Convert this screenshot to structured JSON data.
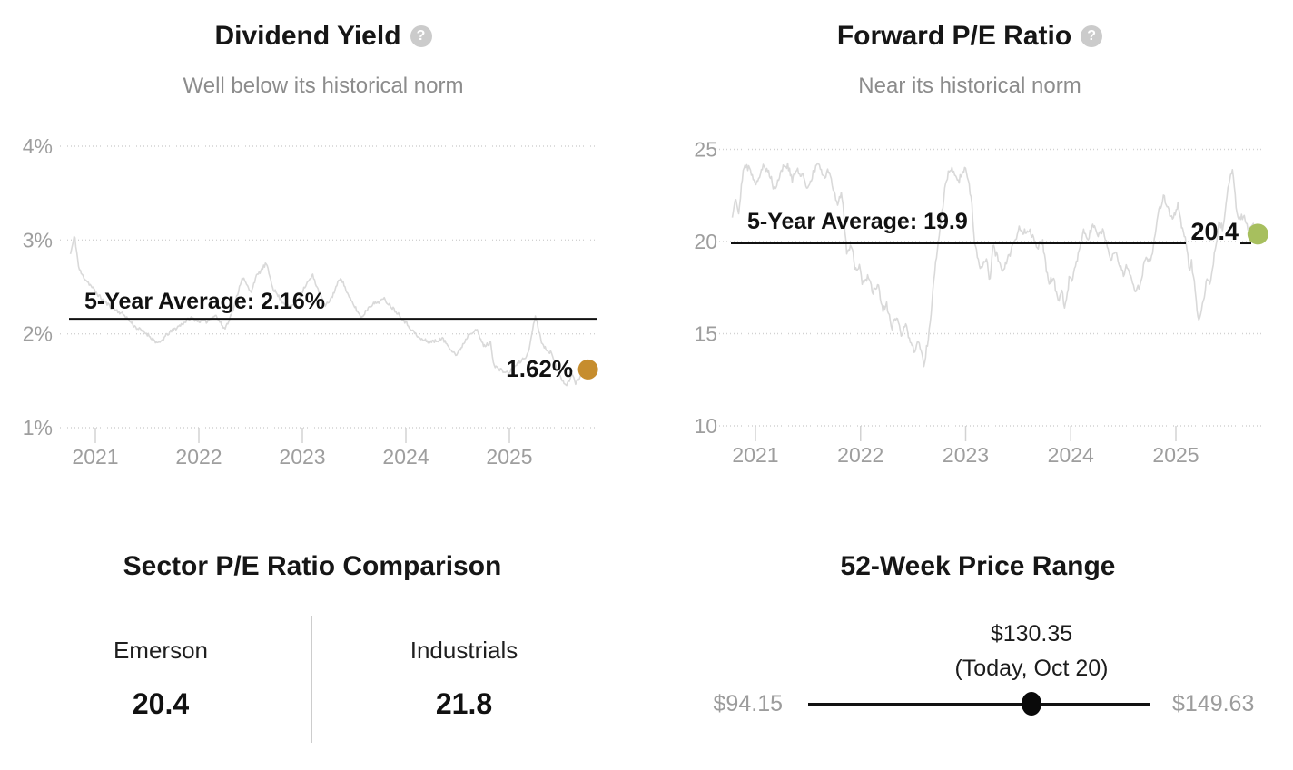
{
  "ui": {
    "help_glyph": "?"
  },
  "chart_data": [
    {
      "id": "dividend-yield",
      "type": "line",
      "title": "Dividend Yield",
      "subtitle": "Well below its historical norm",
      "x_ticks": [
        2021,
        2022,
        2023,
        2024,
        2025
      ],
      "y_ticks": [
        {
          "label": "4%",
          "value": 4
        },
        {
          "label": "3%",
          "value": 3
        },
        {
          "label": "2%",
          "value": 2
        },
        {
          "label": "1%",
          "value": 1
        }
      ],
      "x_range": [
        2020.76,
        2025.76
      ],
      "ylim": [
        1,
        4
      ],
      "grid": "dotted-horizontal",
      "legend_position": "none",
      "average": {
        "label": "5-Year Average: 2.16%",
        "value": 2.16
      },
      "current": {
        "label": "1.62%",
        "value": 1.62
      },
      "line_color": "#d9d9d9",
      "dot_color": "#c68d2e",
      "anchors": [
        [
          2020.76,
          2.85
        ],
        [
          2020.8,
          3.05
        ],
        [
          2020.84,
          2.7
        ],
        [
          2020.87,
          2.63
        ],
        [
          2020.93,
          2.55
        ],
        [
          2021.0,
          2.45
        ],
        [
          2021.08,
          2.35
        ],
        [
          2021.16,
          2.28
        ],
        [
          2021.28,
          2.2
        ],
        [
          2021.39,
          2.07
        ],
        [
          2021.5,
          2.0
        ],
        [
          2021.57,
          1.93
        ],
        [
          2021.61,
          1.89
        ],
        [
          2021.7,
          2.0
        ],
        [
          2021.83,
          2.1
        ],
        [
          2021.92,
          2.17
        ],
        [
          2022.0,
          2.14
        ],
        [
          2022.07,
          2.13
        ],
        [
          2022.16,
          2.2
        ],
        [
          2022.25,
          2.05
        ],
        [
          2022.33,
          2.25
        ],
        [
          2022.42,
          2.61
        ],
        [
          2022.5,
          2.44
        ],
        [
          2022.55,
          2.6
        ],
        [
          2022.65,
          2.75
        ],
        [
          2022.72,
          2.48
        ],
        [
          2022.8,
          2.35
        ],
        [
          2022.88,
          2.28
        ],
        [
          2022.95,
          2.35
        ],
        [
          2023.02,
          2.5
        ],
        [
          2023.1,
          2.62
        ],
        [
          2023.16,
          2.45
        ],
        [
          2023.22,
          2.29
        ],
        [
          2023.28,
          2.38
        ],
        [
          2023.37,
          2.61
        ],
        [
          2023.45,
          2.39
        ],
        [
          2023.5,
          2.3
        ],
        [
          2023.57,
          2.17
        ],
        [
          2023.65,
          2.3
        ],
        [
          2023.79,
          2.37
        ],
        [
          2023.94,
          2.2
        ],
        [
          2024.09,
          2.0
        ],
        [
          2024.13,
          1.95
        ],
        [
          2024.21,
          1.92
        ],
        [
          2024.29,
          1.92
        ],
        [
          2024.35,
          1.95
        ],
        [
          2024.49,
          1.77
        ],
        [
          2024.61,
          2.0
        ],
        [
          2024.68,
          2.05
        ],
        [
          2024.75,
          1.87
        ],
        [
          2024.82,
          1.9
        ],
        [
          2024.85,
          1.67
        ],
        [
          2024.9,
          1.62
        ],
        [
          2024.99,
          1.58
        ],
        [
          2025.08,
          1.68
        ],
        [
          2025.18,
          1.78
        ],
        [
          2025.25,
          2.2
        ],
        [
          2025.32,
          1.88
        ],
        [
          2025.4,
          1.8
        ],
        [
          2025.46,
          1.63
        ],
        [
          2025.54,
          1.44
        ],
        [
          2025.61,
          1.57
        ],
        [
          2025.64,
          1.47
        ],
        [
          2025.7,
          1.58
        ],
        [
          2025.76,
          1.62
        ]
      ]
    },
    {
      "id": "forward-pe",
      "type": "line",
      "title": "Forward P/E Ratio",
      "subtitle": "Near its historical norm",
      "x_ticks": [
        2021,
        2022,
        2023,
        2024,
        2025
      ],
      "y_ticks": [
        {
          "label": "25",
          "value": 25
        },
        {
          "label": "20",
          "value": 20
        },
        {
          "label": "15",
          "value": 15
        },
        {
          "label": "10",
          "value": 10
        }
      ],
      "x_range": [
        2020.78,
        2025.78
      ],
      "ylim": [
        10,
        25
      ],
      "grid": "dotted-horizontal",
      "legend_position": "none",
      "average": {
        "label": "5-Year Average: 19.9",
        "value": 19.9
      },
      "current": {
        "label": "20.4",
        "value": 20.4
      },
      "line_color": "#d9d9d9",
      "dot_color": "#a7bf5e",
      "anchors": [
        [
          2020.78,
          21.3
        ],
        [
          2020.81,
          22.45
        ],
        [
          2020.84,
          21.55
        ],
        [
          2020.88,
          23.8
        ],
        [
          2020.92,
          24.1
        ],
        [
          2021.01,
          23.2
        ],
        [
          2021.07,
          24.05
        ],
        [
          2021.14,
          23.65
        ],
        [
          2021.18,
          22.8
        ],
        [
          2021.26,
          24.05
        ],
        [
          2021.31,
          24.1
        ],
        [
          2021.35,
          23.3
        ],
        [
          2021.39,
          23.9
        ],
        [
          2021.46,
          23.45
        ],
        [
          2021.5,
          22.9
        ],
        [
          2021.59,
          24.3
        ],
        [
          2021.65,
          23.4
        ],
        [
          2021.69,
          23.9
        ],
        [
          2021.78,
          22.05
        ],
        [
          2021.82,
          22.7
        ],
        [
          2021.87,
          19.4
        ],
        [
          2021.92,
          19.8
        ],
        [
          2021.95,
          18.4
        ],
        [
          2021.99,
          18.7
        ],
        [
          2022.02,
          17.65
        ],
        [
          2022.08,
          18.2
        ],
        [
          2022.11,
          17.2
        ],
        [
          2022.17,
          17.55
        ],
        [
          2022.21,
          16.2
        ],
        [
          2022.25,
          16.55
        ],
        [
          2022.3,
          15.3
        ],
        [
          2022.34,
          15.9
        ],
        [
          2022.39,
          14.9
        ],
        [
          2022.43,
          15.4
        ],
        [
          2022.51,
          14.05
        ],
        [
          2022.56,
          14.55
        ],
        [
          2022.6,
          13.25
        ],
        [
          2022.65,
          14.9
        ],
        [
          2022.71,
          18.55
        ],
        [
          2022.81,
          23.2
        ],
        [
          2022.86,
          24.05
        ],
        [
          2022.94,
          23.35
        ],
        [
          2023.0,
          24.0
        ],
        [
          2023.06,
          22.25
        ],
        [
          2023.08,
          20.05
        ],
        [
          2023.14,
          18.4
        ],
        [
          2023.2,
          19.05
        ],
        [
          2023.23,
          17.9
        ],
        [
          2023.26,
          19.7
        ],
        [
          2023.36,
          18.4
        ],
        [
          2023.4,
          19.05
        ],
        [
          2023.51,
          20.7
        ],
        [
          2023.55,
          20.55
        ],
        [
          2023.6,
          20.7
        ],
        [
          2023.69,
          19.7
        ],
        [
          2023.73,
          20.05
        ],
        [
          2023.79,
          17.55
        ],
        [
          2023.83,
          18.15
        ],
        [
          2023.88,
          16.7
        ],
        [
          2023.92,
          17.4
        ],
        [
          2023.94,
          16.2
        ],
        [
          2023.99,
          18.15
        ],
        [
          2024.02,
          17.95
        ],
        [
          2024.12,
          20.55
        ],
        [
          2024.15,
          20.05
        ],
        [
          2024.22,
          20.9
        ],
        [
          2024.27,
          20.3
        ],
        [
          2024.31,
          20.7
        ],
        [
          2024.38,
          19.05
        ],
        [
          2024.42,
          19.55
        ],
        [
          2024.5,
          18.2
        ],
        [
          2024.54,
          18.7
        ],
        [
          2024.61,
          17.2
        ],
        [
          2024.65,
          17.55
        ],
        [
          2024.72,
          19.2
        ],
        [
          2024.76,
          18.9
        ],
        [
          2024.84,
          21.65
        ],
        [
          2024.89,
          22.45
        ],
        [
          2024.93,
          21.7
        ],
        [
          2024.97,
          21.2
        ],
        [
          2025.02,
          22.05
        ],
        [
          2025.06,
          20.7
        ],
        [
          2025.1,
          19.9
        ],
        [
          2025.13,
          18.4
        ],
        [
          2025.15,
          18.9
        ],
        [
          2025.22,
          15.55
        ],
        [
          2025.3,
          18.05
        ],
        [
          2025.33,
          17.75
        ],
        [
          2025.41,
          21.05
        ],
        [
          2025.45,
          20.7
        ],
        [
          2025.5,
          23.05
        ],
        [
          2025.54,
          24.0
        ],
        [
          2025.58,
          21.55
        ],
        [
          2025.6,
          21.2
        ],
        [
          2025.65,
          21.4
        ],
        [
          2025.69,
          20.7
        ],
        [
          2025.73,
          21.0
        ],
        [
          2025.78,
          20.4
        ]
      ]
    }
  ],
  "sector_comparison": {
    "title": "Sector P/E Ratio Comparison",
    "columns": [
      {
        "label": "Emerson",
        "value": "20.4"
      },
      {
        "label": "Industrials",
        "value": "21.8"
      }
    ]
  },
  "price_range": {
    "title": "52-Week Price Range",
    "current_label": "$130.35",
    "current_sublabel": "(Today, Oct 20)",
    "low_label": "$94.15",
    "high_label": "$149.63",
    "low": 94.15,
    "high": 149.63,
    "current": 130.35
  }
}
